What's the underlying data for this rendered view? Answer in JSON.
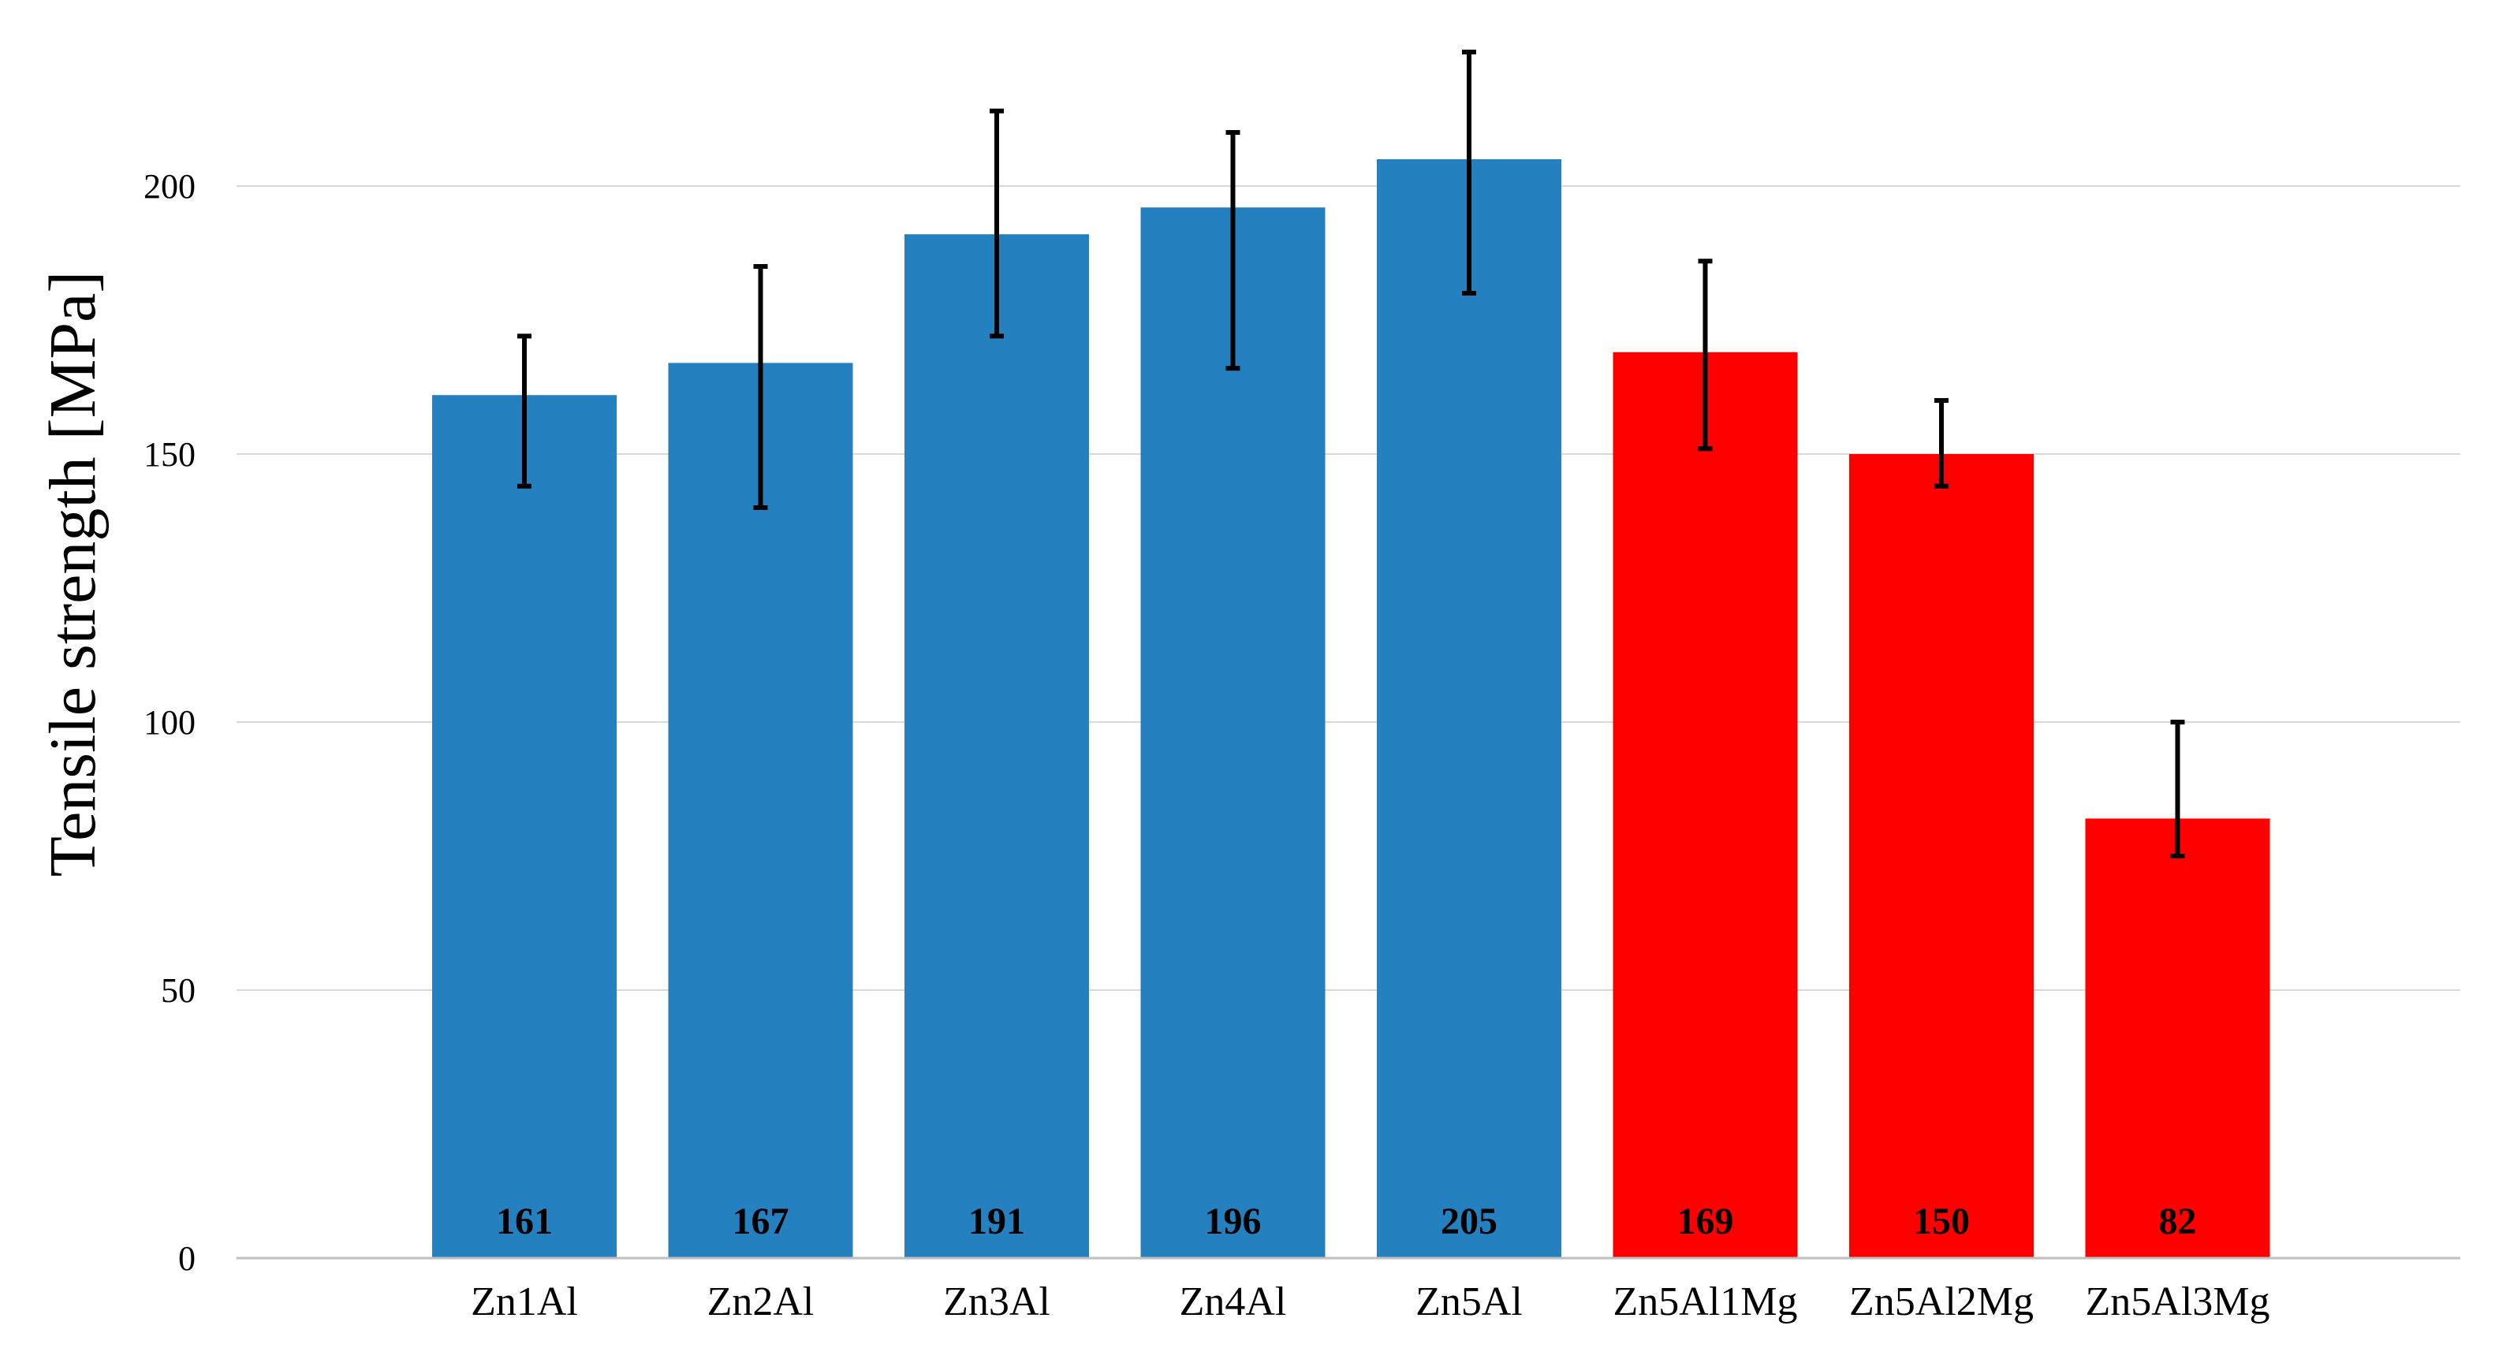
{
  "chart_data": {
    "type": "bar",
    "title": "",
    "xlabel": "",
    "ylabel": "Tensile strength [MPa]",
    "ylim": [
      0,
      230
    ],
    "yticks": [
      0,
      50,
      100,
      150,
      200
    ],
    "grid": true,
    "categories": [
      "Zn1Al",
      "Zn2Al",
      "Zn3Al",
      "Zn4Al",
      "Zn5Al",
      "Zn5Al1Mg",
      "Zn5Al2Mg",
      "Zn5Al3Mg"
    ],
    "values": [
      161,
      167,
      191,
      196,
      205,
      169,
      150,
      82
    ],
    "data_labels": [
      "161",
      "167",
      "191",
      "196",
      "205",
      "169",
      "150",
      "82"
    ],
    "error_low": [
      144,
      140,
      172,
      166,
      180,
      151,
      144,
      75
    ],
    "error_high": [
      172,
      185,
      214,
      210,
      225,
      186,
      160,
      100
    ],
    "bar_colors": [
      "#2580bf",
      "#2580bf",
      "#2580bf",
      "#2580bf",
      "#2580bf",
      "#ff0000",
      "#ff0000",
      "#ff0000"
    ],
    "colors": {
      "grid": "#d9d9d9",
      "axis": "#bfbfbf",
      "error_bar": "#000000"
    }
  }
}
